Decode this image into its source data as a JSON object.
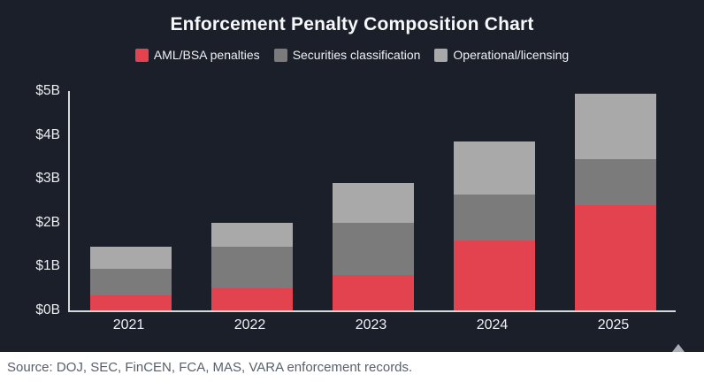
{
  "title": "Enforcement Penalty Composition Chart",
  "footer": {
    "source_note": "Source: DOJ, SEC, FinCEN, FCA, MAS, VARA enforcement records."
  },
  "colors": {
    "card_background": "#1b1f2a",
    "axis": "#d6d9dc",
    "title_text": "#f7f8fa",
    "tick_text": "#eceef0",
    "footer_background": "#ffffff",
    "source_text": "#5a6069",
    "scroll_arrow": "#a9aeb4"
  },
  "chart_data": {
    "type": "bar",
    "stacked": true,
    "title": "Enforcement Penalty Composition Chart",
    "categories": [
      "2021",
      "2022",
      "2023",
      "2024",
      "2025"
    ],
    "series": [
      {
        "name": "AML/BSA penalties",
        "color": "#e2434e",
        "values": [
          0.35,
          0.5,
          0.8,
          1.6,
          2.4
        ]
      },
      {
        "name": "Securities classification",
        "color": "#7b7b7b",
        "values": [
          0.6,
          0.95,
          1.2,
          1.05,
          1.05
        ]
      },
      {
        "name": "Operational/licensing",
        "color": "#a9a9a9",
        "values": [
          0.5,
          0.55,
          0.9,
          1.2,
          1.5
        ]
      }
    ],
    "totals": [
      1.45,
      2.0,
      2.9,
      3.85,
      4.95
    ],
    "units": "USD billions",
    "xlabel": "",
    "ylabel": "",
    "ylim": [
      0,
      5
    ],
    "yticks": [
      "$0B",
      "$1B",
      "$2B",
      "$3B",
      "$4B",
      "$5B"
    ],
    "grid": false,
    "legend_position": "top"
  }
}
